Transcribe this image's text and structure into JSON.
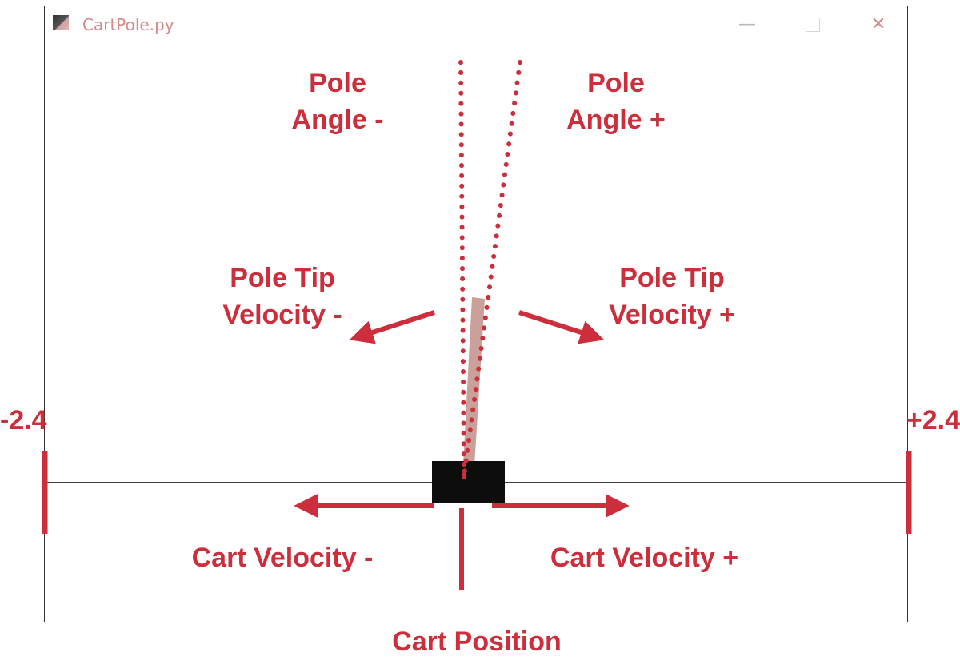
{
  "window": {
    "title": "CartPole.py",
    "controls": {
      "minimize": "—",
      "close": "✕"
    },
    "icon": "app-icon"
  },
  "labels": {
    "pole_angle_neg": [
      "Pole",
      "Angle -"
    ],
    "pole_angle_pos": [
      "Pole",
      "Angle +"
    ],
    "pole_tip_velocity_neg": [
      "Pole Tip",
      "Velocity -"
    ],
    "pole_tip_velocity_pos": [
      "Pole Tip",
      "Velocity +"
    ],
    "cart_velocity_neg": "Cart Velocity -",
    "cart_velocity_pos": "Cart Velocity +",
    "cart_position": "Cart Position",
    "bound_left": "-2.4",
    "bound_right": "+2.4"
  },
  "colors": {
    "annotation": "#cc2e3c",
    "pole": "#c9a19a",
    "cart": "#0d0d0d",
    "track": "#000000"
  }
}
